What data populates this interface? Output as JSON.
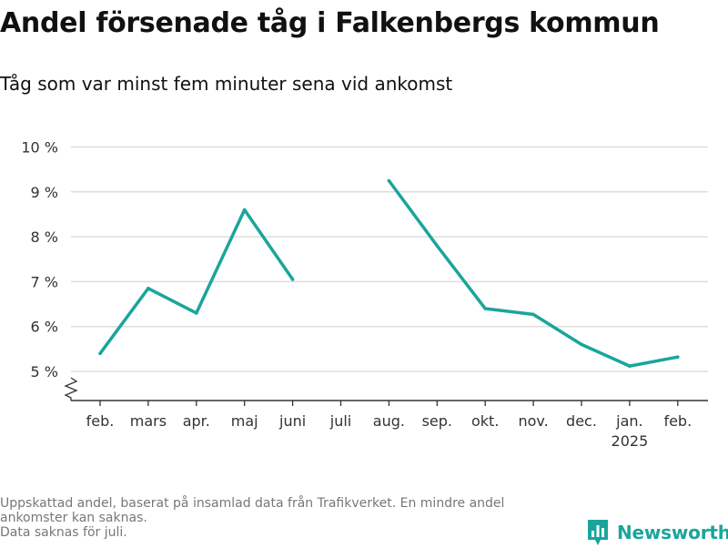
{
  "title": "Andel försenade tåg i Falkenbergs kommun",
  "subtitle": "Tåg som var minst fem minuter sena vid ankomst",
  "footnote": {
    "line1": "Uppskattad andel, baserat på insamlad data från Trafikverket. En mindre andel",
    "line2": "ankomster kan saknas.",
    "line3": "Data saknas för juli."
  },
  "brand": {
    "name": "Newsworthy",
    "icon": "bar-chart-logo-icon"
  },
  "colors": {
    "line": "#1aa59c",
    "brand": "#1aa59c",
    "grid": "#dddddd",
    "axis": "#333333"
  },
  "chart_data": {
    "type": "line",
    "title": "Andel försenade tåg i Falkenbergs kommun",
    "subtitle": "Tåg som var minst fem minuter sena vid ankomst",
    "categories": [
      "feb.",
      "mars",
      "apr.",
      "maj",
      "juni",
      "juli",
      "aug.",
      "sep.",
      "okt.",
      "nov.",
      "dec.",
      "jan.",
      "feb."
    ],
    "year_labels": [
      "",
      "",
      "",
      "",
      "",
      "",
      "",
      "",
      "",
      "",
      "",
      "2025",
      ""
    ],
    "values": [
      5.4,
      6.85,
      6.3,
      8.6,
      7.05,
      null,
      9.25,
      7.8,
      6.4,
      6.27,
      5.6,
      5.12,
      5.32
    ],
    "y_ticks": [
      5,
      6,
      7,
      8,
      9,
      10
    ],
    "y_tick_labels": [
      "5 %",
      "6 %",
      "7 %",
      "8 %",
      "9 %",
      "10 %"
    ],
    "ylim": [
      5,
      10
    ],
    "y_axis_broken": true,
    "grid": true,
    "xlabel": "",
    "ylabel": ""
  }
}
